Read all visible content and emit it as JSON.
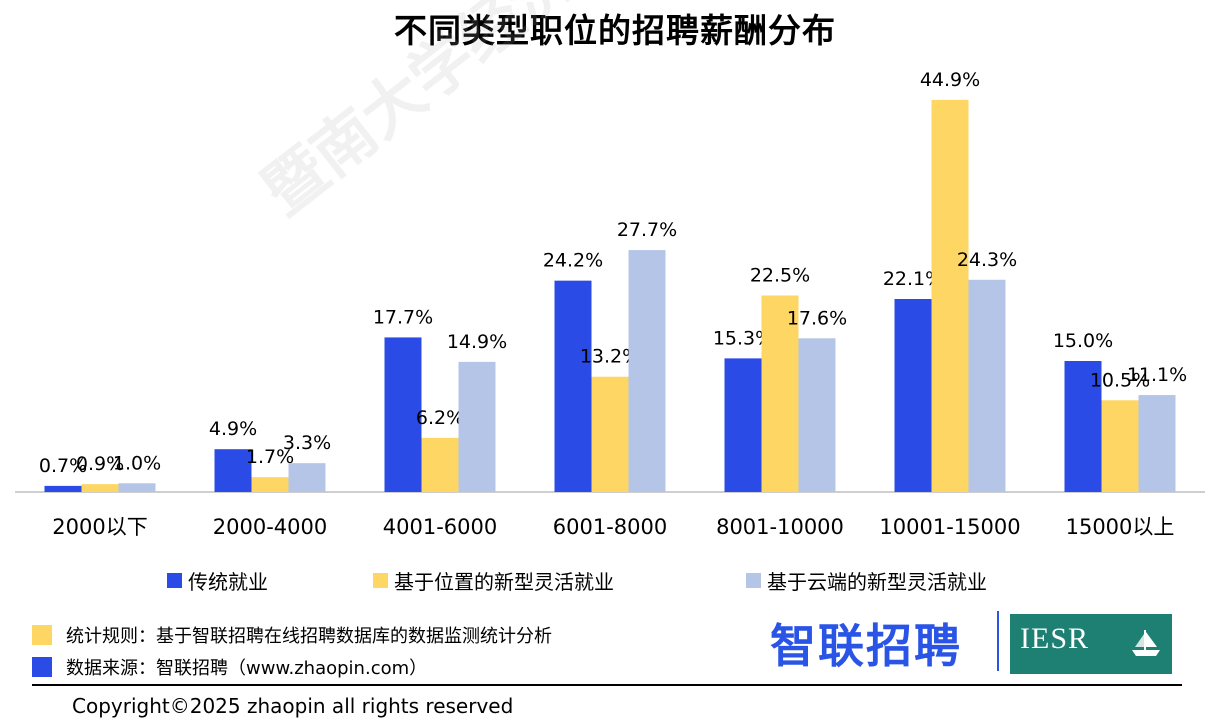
{
  "title": "不同类型职位的招聘薪酬分布",
  "chart_data": {
    "type": "bar",
    "title": "不同类型职位的招聘薪酬分布",
    "categories": [
      "2000以下",
      "2000-4000",
      "4001-6000",
      "6001-8000",
      "8001-10000",
      "10001-15000",
      "15000以上"
    ],
    "series": [
      {
        "name": "传统就业",
        "color": "#2a4be6",
        "values": [
          0.7,
          4.9,
          17.7,
          24.2,
          15.3,
          22.1,
          15.0
        ],
        "labels": [
          "0.7%",
          "4.9%",
          "17.7%",
          "24.2%",
          "15.3%",
          "22.1%",
          "15.0%"
        ]
      },
      {
        "name": "基于位置的新型灵活就业",
        "color": "#fdd663",
        "values": [
          0.9,
          1.7,
          6.2,
          13.2,
          22.5,
          44.9,
          10.5
        ],
        "labels": [
          "0.9%",
          "1.7%",
          "6.2%",
          "13.2%",
          "22.5%",
          "44.9%",
          "10.5%"
        ]
      },
      {
        "name": "基于云端的新型灵活就业",
        "color": "#b4c5e8",
        "values": [
          1.0,
          3.3,
          14.9,
          27.7,
          17.6,
          24.3,
          11.1
        ],
        "labels": [
          "1.0%",
          "3.3%",
          "14.9%",
          "27.7%",
          "17.6%",
          "24.3%",
          "11.1%"
        ]
      }
    ],
    "ylim": [
      0,
      45
    ],
    "grid": false,
    "legend_position": "bottom"
  },
  "notes": {
    "rule": "统计规则：基于智联招聘在线招聘数据库的数据监测统计分析",
    "rule_color": "#fdd663",
    "source": "数据来源：智联招聘（www.zhaopin.com）",
    "source_color": "#2a4be6"
  },
  "branding": {
    "zhaopin_logo": "智联招聘",
    "iesr_logo": "IESR",
    "watermark": "暨南大学经济与社会研究院"
  },
  "footer": {
    "copyright": "Copyright©2025 zhaopin all rights reserved"
  }
}
